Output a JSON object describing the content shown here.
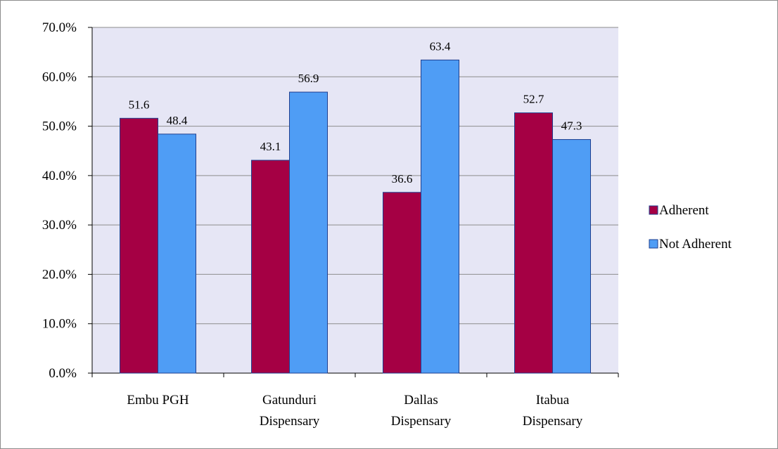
{
  "chart_data": {
    "type": "bar",
    "categories": [
      [
        "Embu PGH"
      ],
      [
        "Gatunduri",
        "Dispensary"
      ],
      [
        "Dallas",
        "Dispensary"
      ],
      [
        "Itabua",
        "Dispensary"
      ]
    ],
    "series": [
      {
        "name": "Adherent",
        "values": [
          51.6,
          43.1,
          36.6,
          52.7
        ],
        "color": "#a50044"
      },
      {
        "name": "Not Adherent",
        "values": [
          48.4,
          56.9,
          63.4,
          47.3
        ],
        "color": "#4f9df5"
      }
    ],
    "data_labels": [
      [
        "51.6",
        "43.1",
        "36.6",
        "52.7"
      ],
      [
        "48.4",
        "56.9",
        "63.4",
        "47.3"
      ]
    ],
    "y_ticks": [
      "0.0%",
      "10.0%",
      "20.0%",
      "30.0%",
      "40.0%",
      "50.0%",
      "60.0%",
      "70.0%"
    ],
    "ylim": [
      0,
      70
    ],
    "grid": true,
    "legend_position": "right",
    "plot_background": "#e6e6f5",
    "grid_color": "#8c8c8c",
    "bar_edge_color": "#1f3f8f"
  }
}
